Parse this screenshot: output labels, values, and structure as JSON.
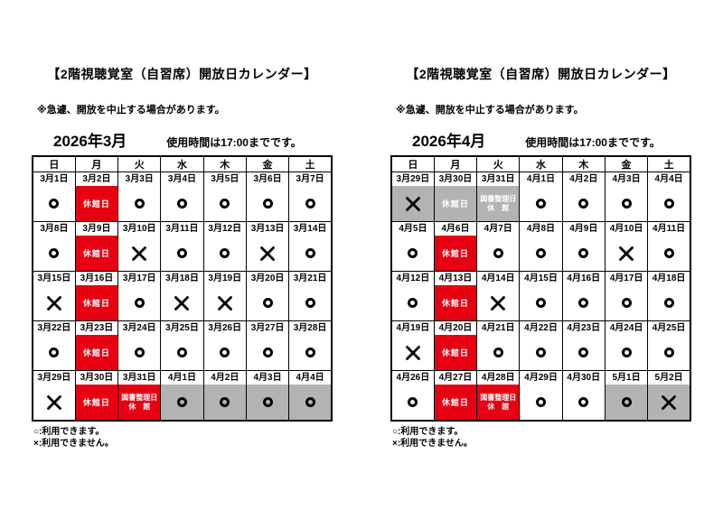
{
  "colors": {
    "closed_red": "#e60012",
    "adjacent_month_gray": "#b3b3b3",
    "border_black": "#000000"
  },
  "calendars": [
    {
      "title": "【2階視聴覚室（自習席）開放日カレンダー】",
      "note": "※急遽、開放を中止する場合があります。",
      "month_label": "2026年3月",
      "time_label": "使用時間は17:00までです。",
      "weekdays": [
        "日",
        "月",
        "火",
        "水",
        "木",
        "金",
        "土"
      ],
      "closed_label": "休館日",
      "sorting_label_lines": [
        "図書整理日",
        "休　館"
      ],
      "weeks": [
        [
          {
            "date": "3月1日",
            "mark": "O"
          },
          {
            "date": "3月2日",
            "mark": "closed"
          },
          {
            "date": "3月3日",
            "mark": "O"
          },
          {
            "date": "3月4日",
            "mark": "O"
          },
          {
            "date": "3月5日",
            "mark": "O"
          },
          {
            "date": "3月6日",
            "mark": "O"
          },
          {
            "date": "3月7日",
            "mark": "O"
          }
        ],
        [
          {
            "date": "3月8日",
            "mark": "O"
          },
          {
            "date": "3月9日",
            "mark": "closed"
          },
          {
            "date": "3月10日",
            "mark": "X"
          },
          {
            "date": "3月11日",
            "mark": "O"
          },
          {
            "date": "3月12日",
            "mark": "O"
          },
          {
            "date": "3月13日",
            "mark": "X"
          },
          {
            "date": "3月14日",
            "mark": "O"
          }
        ],
        [
          {
            "date": "3月15日",
            "mark": "X"
          },
          {
            "date": "3月16日",
            "mark": "closed"
          },
          {
            "date": "3月17日",
            "mark": "O"
          },
          {
            "date": "3月18日",
            "mark": "X"
          },
          {
            "date": "3月19日",
            "mark": "X"
          },
          {
            "date": "3月20日",
            "mark": "O"
          },
          {
            "date": "3月21日",
            "mark": "O"
          }
        ],
        [
          {
            "date": "3月22日",
            "mark": "O"
          },
          {
            "date": "3月23日",
            "mark": "closed"
          },
          {
            "date": "3月24日",
            "mark": "O"
          },
          {
            "date": "3月25日",
            "mark": "O"
          },
          {
            "date": "3月26日",
            "mark": "O"
          },
          {
            "date": "3月27日",
            "mark": "O"
          },
          {
            "date": "3月28日",
            "mark": "O"
          }
        ],
        [
          {
            "date": "3月29日",
            "mark": "X"
          },
          {
            "date": "3月30日",
            "mark": "closed"
          },
          {
            "date": "3月31日",
            "mark": "sorting"
          },
          {
            "date": "4月1日",
            "mark": "O",
            "gray": true
          },
          {
            "date": "4月2日",
            "mark": "O",
            "gray": true
          },
          {
            "date": "4月3日",
            "mark": "O",
            "gray": true
          },
          {
            "date": "4月4日",
            "mark": "O",
            "gray": true
          }
        ]
      ],
      "legend": [
        "○:利用できます。",
        "×:利用できません。"
      ]
    },
    {
      "title": "【2階視聴覚室（自習席）開放日カレンダー】",
      "note": "※急遽、開放を中止する場合があります。",
      "month_label": "2026年4月",
      "time_label": "使用時間は17:00までです。",
      "weekdays": [
        "日",
        "月",
        "火",
        "水",
        "木",
        "金",
        "土"
      ],
      "closed_label": "休館日",
      "sorting_label_lines": [
        "図書整理日",
        "休　館"
      ],
      "weeks": [
        [
          {
            "date": "3月29日",
            "mark": "X",
            "gray": true
          },
          {
            "date": "3月30日",
            "mark": "closed",
            "gray": true
          },
          {
            "date": "3月31日",
            "mark": "sorting",
            "gray": true
          },
          {
            "date": "4月1日",
            "mark": "O"
          },
          {
            "date": "4月2日",
            "mark": "O"
          },
          {
            "date": "4月3日",
            "mark": "O"
          },
          {
            "date": "4月4日",
            "mark": "O"
          }
        ],
        [
          {
            "date": "4月5日",
            "mark": "O"
          },
          {
            "date": "4月6日",
            "mark": "closed"
          },
          {
            "date": "4月7日",
            "mark": "O"
          },
          {
            "date": "4月8日",
            "mark": "O"
          },
          {
            "date": "4月9日",
            "mark": "O"
          },
          {
            "date": "4月10日",
            "mark": "X"
          },
          {
            "date": "4月11日",
            "mark": "O"
          }
        ],
        [
          {
            "date": "4月12日",
            "mark": "O"
          },
          {
            "date": "4月13日",
            "mark": "closed"
          },
          {
            "date": "4月14日",
            "mark": "X"
          },
          {
            "date": "4月15日",
            "mark": "O"
          },
          {
            "date": "4月16日",
            "mark": "O"
          },
          {
            "date": "4月17日",
            "mark": "O"
          },
          {
            "date": "4月18日",
            "mark": "O"
          }
        ],
        [
          {
            "date": "4月19日",
            "mark": "X"
          },
          {
            "date": "4月20日",
            "mark": "closed"
          },
          {
            "date": "4月21日",
            "mark": "O"
          },
          {
            "date": "4月22日",
            "mark": "O"
          },
          {
            "date": "4月23日",
            "mark": "O"
          },
          {
            "date": "4月24日",
            "mark": "O"
          },
          {
            "date": "4月25日",
            "mark": "O"
          }
        ],
        [
          {
            "date": "4月26日",
            "mark": "O"
          },
          {
            "date": "4月27日",
            "mark": "closed"
          },
          {
            "date": "4月28日",
            "mark": "sorting"
          },
          {
            "date": "4月29日",
            "mark": "O"
          },
          {
            "date": "4月30日",
            "mark": "O"
          },
          {
            "date": "5月1日",
            "mark": "O",
            "gray": true
          },
          {
            "date": "5月2日",
            "mark": "X",
            "gray": true
          }
        ]
      ],
      "legend": [
        "○:利用できます。",
        "×:利用できません。"
      ]
    }
  ]
}
